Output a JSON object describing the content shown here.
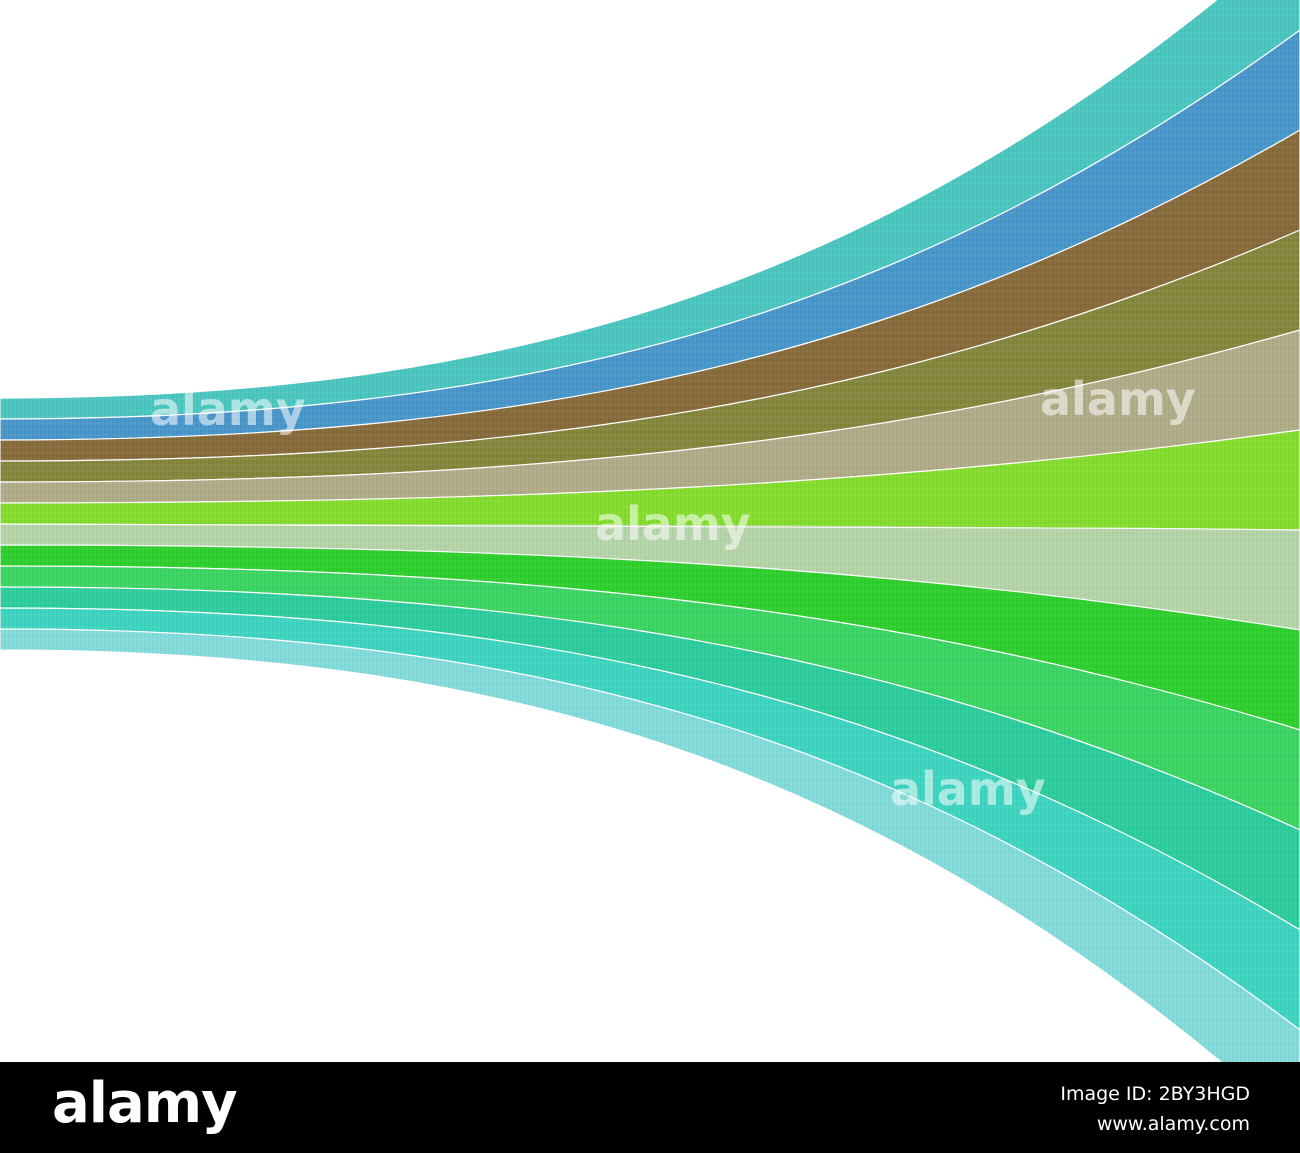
{
  "watermark": "alamy",
  "footer": {
    "logo": "alamy",
    "image_id": "Image ID: 2BY3HGD",
    "website": "www.alamy.com"
  }
}
